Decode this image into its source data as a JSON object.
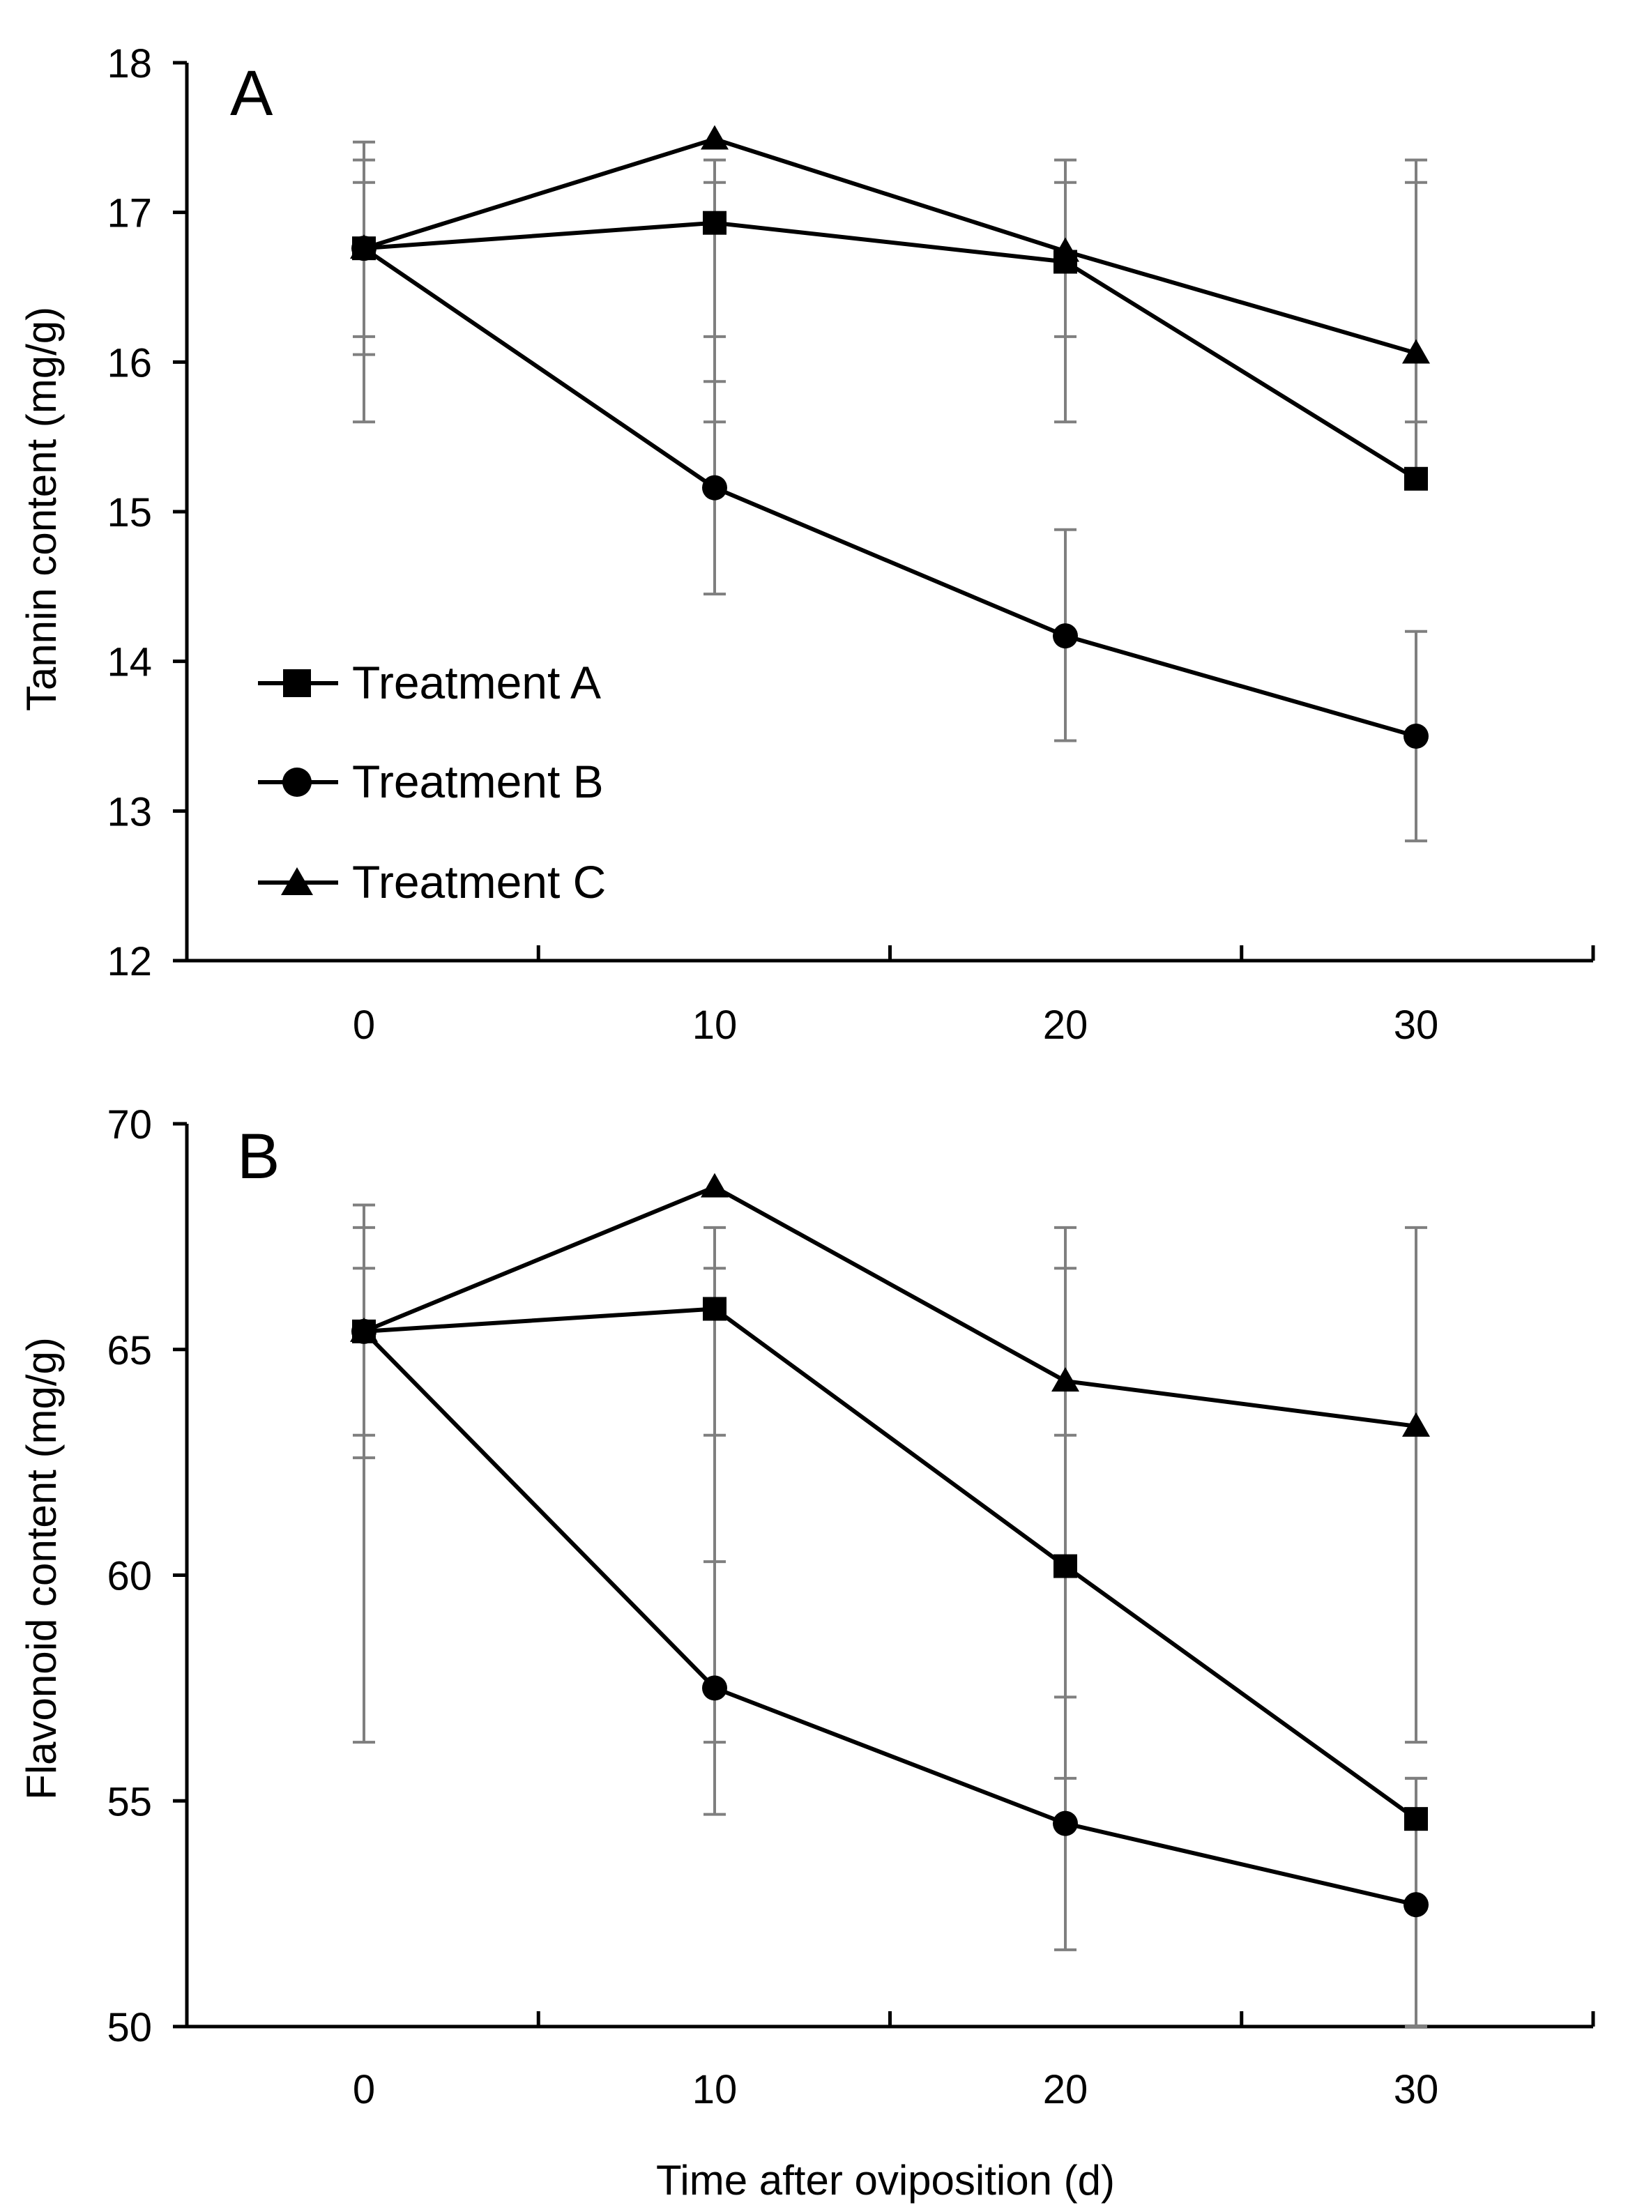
{
  "figure": {
    "xlabel": "Time after oviposition (d)"
  },
  "chart_data": [
    {
      "type": "line",
      "panel_label": "A",
      "ylabel": "Tannin content (mg/g)",
      "x": [
        0,
        10,
        20,
        30
      ],
      "x_tick_labels": [
        "0",
        "10",
        "20",
        "30"
      ],
      "ylim": [
        12,
        18
      ],
      "y_ticks": [
        12,
        13,
        14,
        15,
        16,
        17,
        18
      ],
      "y_tick_labels": [
        "12",
        "13",
        "14",
        "15",
        "16",
        "17",
        "18"
      ],
      "legend_location": "lower-left",
      "series": [
        {
          "name": "Treatment A",
          "marker": "square",
          "values": [
            16.76,
            16.93,
            16.67,
            15.22
          ],
          "error_low": [
            15.6,
            15.6,
            15.6,
            15.22
          ],
          "error_high": [
            17.35,
            17.35,
            17.2,
            17.2
          ]
        },
        {
          "name": "Treatment B",
          "marker": "circle",
          "values": [
            16.76,
            15.16,
            14.17,
            13.5
          ],
          "error_low": [
            16.05,
            14.45,
            13.47,
            12.8
          ],
          "error_high": [
            17.47,
            15.87,
            14.88,
            14.2
          ]
        },
        {
          "name": "Treatment C",
          "marker": "triangle",
          "values": [
            16.76,
            17.49,
            16.74,
            16.06
          ],
          "error_low": [
            16.17,
            16.17,
            16.17,
            15.6
          ],
          "error_high": [
            17.2,
            17.2,
            17.35,
            17.35
          ]
        }
      ],
      "legend": [
        "Treatment A",
        "Treatment B",
        "Treatment C"
      ]
    },
    {
      "type": "line",
      "panel_label": "B",
      "ylabel": "Flavonoid content (mg/g)",
      "x": [
        0,
        10,
        20,
        30
      ],
      "x_tick_labels": [
        "0",
        "10",
        "20",
        "30"
      ],
      "ylim": [
        50,
        70
      ],
      "y_ticks": [
        50,
        55,
        60,
        65,
        70
      ],
      "y_tick_labels": [
        "50",
        "55",
        "60",
        "65",
        "70"
      ],
      "series": [
        {
          "name": "Treatment A",
          "marker": "square",
          "values": [
            65.4,
            65.9,
            60.2,
            54.6
          ],
          "error_low": [
            56.3,
            56.3,
            55.5,
            54.6
          ],
          "error_high": [
            67.7,
            67.7,
            66.8,
            55.5
          ]
        },
        {
          "name": "Treatment B",
          "marker": "circle",
          "values": [
            65.4,
            57.5,
            54.5,
            52.7
          ],
          "error_low": [
            62.6,
            54.7,
            51.7,
            50.0
          ],
          "error_high": [
            68.2,
            60.3,
            57.3,
            55.5
          ]
        },
        {
          "name": "Treatment C",
          "marker": "triangle",
          "values": [
            65.4,
            68.6,
            64.3,
            63.3
          ],
          "error_low": [
            63.1,
            63.1,
            63.1,
            56.3
          ],
          "error_high": [
            66.8,
            66.8,
            67.7,
            67.7
          ]
        }
      ]
    }
  ]
}
